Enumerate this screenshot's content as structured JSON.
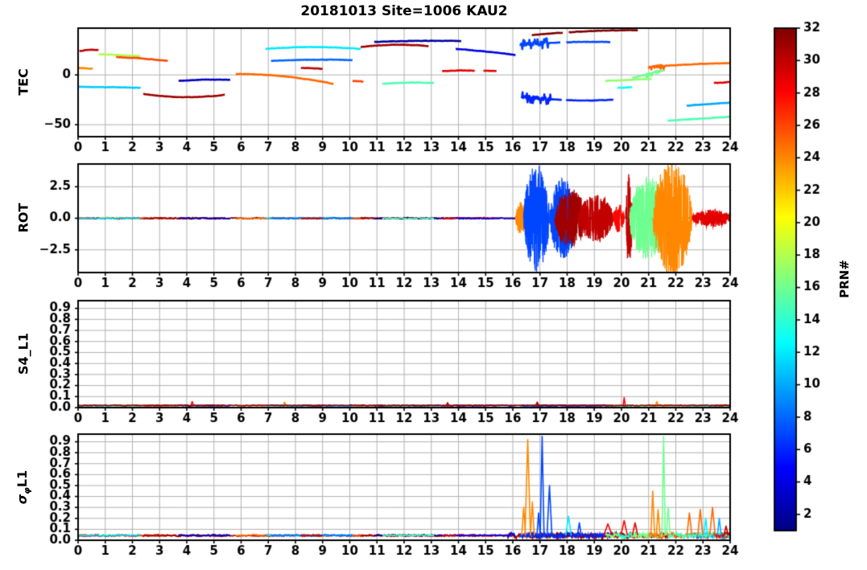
{
  "chart_data": {
    "type": "line",
    "title": "20181013 Site=1006 KAU2",
    "xlim": [
      0,
      24
    ],
    "x_ticks": [
      0,
      1,
      2,
      3,
      4,
      5,
      6,
      7,
      8,
      9,
      10,
      11,
      12,
      13,
      14,
      15,
      16,
      17,
      18,
      19,
      20,
      21,
      22,
      23,
      24
    ],
    "grid_color": "#b0b0b0",
    "frame_color": "#000000",
    "colorbar": {
      "label": "PRN#",
      "min": 1,
      "max": 32,
      "ticks": [
        2,
        4,
        6,
        8,
        10,
        12,
        14,
        16,
        18,
        20,
        22,
        24,
        26,
        28,
        30,
        32
      ],
      "colormap": "jet"
    },
    "panels": [
      {
        "id": "tec",
        "ylabel": "TEC",
        "ylim": [
          -62,
          47
        ],
        "yticks": [
          {
            "v": 0,
            "label": "0"
          },
          {
            "v": -50,
            "label": "−50"
          }
        ],
        "arcs": [
          {
            "prn": 30,
            "t0": 0.05,
            "t1": 0.75,
            "y0": 24,
            "ym": 26,
            "y1": 25
          },
          {
            "prn": 24,
            "t0": 0.0,
            "t1": 0.55,
            "y0": 7,
            "ym": 7,
            "y1": 6
          },
          {
            "prn": 18,
            "t0": 0.75,
            "t1": 2.3,
            "y0": 21,
            "ym": 20,
            "y1": 19
          },
          {
            "prn": 26,
            "t0": 1.4,
            "t1": 3.3,
            "y0": 18,
            "ym": 17,
            "y1": 14
          },
          {
            "prn": 11,
            "t0": 0.0,
            "t1": 2.3,
            "y0": -12,
            "ym": -12,
            "y1": -13
          },
          {
            "prn": 31,
            "t0": 2.4,
            "t1": 5.4,
            "y0": -19,
            "ym": -25,
            "y1": -20
          },
          {
            "prn": 3,
            "t0": 3.7,
            "t1": 5.6,
            "y0": -6,
            "ym": -4,
            "y1": -5
          },
          {
            "prn": 25,
            "t0": 5.8,
            "t1": 9.4,
            "y0": 1,
            "ym": 1,
            "y1": -9
          },
          {
            "prn": 12,
            "t0": 6.9,
            "t1": 10.4,
            "y0": 26,
            "ym": 30,
            "y1": 26
          },
          {
            "prn": 8,
            "t0": 7.1,
            "t1": 10.1,
            "y0": 14,
            "ym": 16,
            "y1": 15
          },
          {
            "prn": 30,
            "t0": 8.2,
            "t1": 9.0,
            "y0": 7,
            "ym": 7,
            "y1": 6
          },
          {
            "prn": 26,
            "t0": 10.1,
            "t1": 10.5,
            "y0": -6,
            "ym": -6,
            "y1": -7
          },
          {
            "prn": 31,
            "t0": 10.4,
            "t1": 12.9,
            "y0": 28,
            "ym": 32,
            "y1": 29
          },
          {
            "prn": 2,
            "t0": 10.9,
            "t1": 14.1,
            "y0": 33,
            "ym": 35,
            "y1": 34
          },
          {
            "prn": 15,
            "t0": 11.2,
            "t1": 13.1,
            "y0": -9,
            "ym": -7,
            "y1": -8
          },
          {
            "prn": 29,
            "t0": 13.4,
            "t1": 15.4,
            "y0": 4,
            "ym": 5,
            "y1": 4,
            "gaps": [
              [
                14.6,
                14.9
              ]
            ]
          },
          {
            "prn": 4,
            "t0": 13.9,
            "t1": 16.1,
            "y0": 26,
            "ym": 24,
            "y1": 20
          },
          {
            "prn": 7,
            "t0": 16.25,
            "t1": 19.6,
            "y0": 30,
            "ym": 34,
            "y1": 33,
            "wiggle": {
              "t0": 16.3,
              "t1": 17.3,
              "amp": 2.5
            },
            "gaps": [
              [
                17.75,
                17.95
              ]
            ]
          },
          {
            "prn": 32,
            "t0": 16.7,
            "t1": 20.6,
            "y0": 40,
            "ym": 45,
            "y1": 45,
            "gaps": [
              [
                17.85,
                18.05
              ]
            ]
          },
          {
            "prn": 6,
            "t0": 16.3,
            "t1": 19.7,
            "y0": -22,
            "ym": -27,
            "y1": -25,
            "wiggle": {
              "t0": 16.35,
              "t1": 17.4,
              "amp": 2.5
            },
            "gaps": [
              [
                17.8,
                17.95
              ]
            ]
          },
          {
            "prn": 17,
            "t0": 19.4,
            "t1": 21.1,
            "y0": -6,
            "ym": -5,
            "y1": -4
          },
          {
            "prn": 13,
            "t0": 19.85,
            "t1": 20.4,
            "y0": -13,
            "ym": -13,
            "y1": -12
          },
          {
            "prn": 16,
            "t0": 20.4,
            "t1": 21.6,
            "y0": -3,
            "ym": 1,
            "y1": 5,
            "wiggle": {
              "t0": 20.9,
              "t1": 21.4,
              "amp": 1.5
            }
          },
          {
            "prn": 25,
            "t0": 21.0,
            "t1": 24.0,
            "y0": 8,
            "ym": 11,
            "y1": 12,
            "wiggle": {
              "t0": 21.0,
              "t1": 21.6,
              "amp": 1.5
            }
          },
          {
            "prn": 10,
            "t0": 22.4,
            "t1": 24.0,
            "y0": -31,
            "ym": -29,
            "y1": -28
          },
          {
            "prn": 15,
            "t0": 21.7,
            "t1": 24.0,
            "y0": -46,
            "ym": -44,
            "y1": -42
          },
          {
            "prn": 29,
            "t0": 23.4,
            "t1": 24.0,
            "y0": -8,
            "ym": -8,
            "y1": -7
          }
        ]
      },
      {
        "id": "rot",
        "ylabel": "ROT",
        "ylim": [
          -4.3,
          4.3
        ],
        "yticks": [
          {
            "v": 2.5,
            "label": "2.5"
          },
          {
            "v": 0,
            "label": "0.0"
          },
          {
            "v": -2.5,
            "label": "−2.5"
          }
        ],
        "baseline_level": 0,
        "noise_amp": 0.12,
        "spikes": [
          {
            "prn": 24,
            "t0": 16.1,
            "t1": 16.5,
            "amp": 1.3
          },
          {
            "prn": 7,
            "t0": 16.4,
            "t1": 17.35,
            "amp": 4.3
          },
          {
            "prn": 7,
            "t0": 17.35,
            "t1": 18.35,
            "amp": 3.2
          },
          {
            "prn": 31,
            "t0": 17.55,
            "t1": 18.7,
            "amp": 2.4
          },
          {
            "prn": 30,
            "t0": 18.4,
            "t1": 19.7,
            "amp": 1.9
          },
          {
            "prn": 28,
            "t0": 19.7,
            "t1": 20.1,
            "amp": 1.2
          },
          {
            "prn": 30,
            "t0": 20.15,
            "t1": 20.4,
            "amp": 3.9
          },
          {
            "prn": 16,
            "t0": 20.3,
            "t1": 21.65,
            "amp": 3.4
          },
          {
            "prn": 24,
            "t0": 21.15,
            "t1": 22.6,
            "amp": 4.6
          },
          {
            "prn": 29,
            "t0": 22.6,
            "t1": 24.0,
            "amp": 0.7
          }
        ]
      },
      {
        "id": "s4",
        "ylabel": "S4_L1",
        "ylim": [
          0,
          0.97
        ],
        "yticks": [
          {
            "v": 0.0,
            "label": "0.0"
          },
          {
            "v": 0.1,
            "label": "0.1"
          },
          {
            "v": 0.2,
            "label": "0.2"
          },
          {
            "v": 0.3,
            "label": "0.3"
          },
          {
            "v": 0.4,
            "label": "0.4"
          },
          {
            "v": 0.5,
            "label": "0.5"
          },
          {
            "v": 0.6,
            "label": "0.6"
          },
          {
            "v": 0.7,
            "label": "0.7"
          },
          {
            "v": 0.8,
            "label": "0.8"
          },
          {
            "v": 0.9,
            "label": "0.9"
          }
        ],
        "baseline_level": 0.018,
        "noise_amp": 0.008,
        "spikes": [
          {
            "prn": 28,
            "t": 4.2,
            "peak": 0.055,
            "w": 0.05
          },
          {
            "prn": 24,
            "t": 7.6,
            "peak": 0.05,
            "w": 0.05
          },
          {
            "prn": 30,
            "t": 13.6,
            "peak": 0.045,
            "w": 0.05
          },
          {
            "prn": 30,
            "t": 16.9,
            "peak": 0.05,
            "w": 0.06
          },
          {
            "prn": 28,
            "t": 20.1,
            "peak": 0.09,
            "w": 0.04
          },
          {
            "prn": 24,
            "t": 21.3,
            "peak": 0.055,
            "w": 0.05
          }
        ]
      },
      {
        "id": "sigphi",
        "ylabel_sigma": "σ",
        "ylabel_sub": "φ",
        "ylabel_rest": "L1",
        "ylim": [
          0,
          0.97
        ],
        "yticks": [
          {
            "v": 0.0,
            "label": "0.0"
          },
          {
            "v": 0.1,
            "label": "0.1"
          },
          {
            "v": 0.2,
            "label": "0.2"
          },
          {
            "v": 0.3,
            "label": "0.3"
          },
          {
            "v": 0.4,
            "label": "0.4"
          },
          {
            "v": 0.5,
            "label": "0.5"
          },
          {
            "v": 0.6,
            "label": "0.6"
          },
          {
            "v": 0.7,
            "label": "0.7"
          },
          {
            "v": 0.8,
            "label": "0.8"
          },
          {
            "v": 0.9,
            "label": "0.9"
          }
        ],
        "baseline_level": 0.045,
        "noise_amp": 0.016,
        "noise_amp_active": 0.05,
        "active_after": 15.8,
        "spikes": [
          {
            "prn": 24,
            "t": 16.4,
            "peak": 0.3,
            "w": 0.07
          },
          {
            "prn": 24,
            "t": 16.55,
            "peak": 0.92,
            "w": 0.1
          },
          {
            "prn": 24,
            "t": 16.72,
            "peak": 0.35,
            "w": 0.07
          },
          {
            "prn": 7,
            "t": 16.95,
            "peak": 0.25,
            "w": 0.06
          },
          {
            "prn": 7,
            "t": 17.08,
            "peak": 0.95,
            "w": 0.07
          },
          {
            "prn": 7,
            "t": 17.35,
            "peak": 0.5,
            "w": 0.09
          },
          {
            "prn": 12,
            "t": 18.05,
            "peak": 0.22,
            "w": 0.1
          },
          {
            "prn": 7,
            "t": 18.45,
            "peak": 0.16,
            "w": 0.07
          },
          {
            "prn": 28,
            "t": 19.5,
            "peak": 0.15,
            "w": 0.15
          },
          {
            "prn": 28,
            "t": 20.1,
            "peak": 0.18,
            "w": 0.12
          },
          {
            "prn": 29,
            "t": 20.5,
            "peak": 0.16,
            "w": 0.1
          },
          {
            "prn": 24,
            "t": 21.15,
            "peak": 0.45,
            "w": 0.07
          },
          {
            "prn": 24,
            "t": 21.35,
            "peak": 0.28,
            "w": 0.07
          },
          {
            "prn": 16,
            "t": 21.55,
            "peak": 0.95,
            "w": 0.06
          },
          {
            "prn": 16,
            "t": 21.72,
            "peak": 0.3,
            "w": 0.07
          },
          {
            "prn": 25,
            "t": 22.5,
            "peak": 0.25,
            "w": 0.09
          },
          {
            "prn": 25,
            "t": 22.9,
            "peak": 0.28,
            "w": 0.09
          },
          {
            "prn": 12,
            "t": 23.1,
            "peak": 0.2,
            "w": 0.07
          },
          {
            "prn": 25,
            "t": 23.35,
            "peak": 0.3,
            "w": 0.1
          },
          {
            "prn": 10,
            "t": 23.6,
            "peak": 0.2,
            "w": 0.07
          },
          {
            "prn": 30,
            "t": 23.85,
            "peak": 0.13,
            "w": 0.08
          }
        ]
      }
    ]
  }
}
